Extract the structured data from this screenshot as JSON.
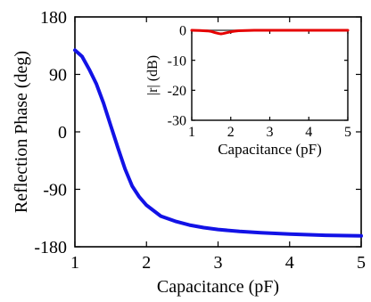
{
  "chart_data": [
    {
      "type": "line",
      "xlabel": "Capacitance (pF)",
      "ylabel": "Reflection Phase (deg)",
      "xlim": [
        1,
        5
      ],
      "ylim": [
        -180,
        180
      ],
      "xticks": [
        "1",
        "2",
        "3",
        "4",
        "5"
      ],
      "yticks": [
        "-180",
        "-90",
        "0",
        "90",
        "180"
      ],
      "grid": false,
      "series": [
        {
          "color": "#1212e6",
          "x": [
            1.0,
            1.1,
            1.2,
            1.3,
            1.4,
            1.5,
            1.6,
            1.7,
            1.8,
            1.9,
            2.0,
            2.2,
            2.4,
            2.6,
            2.8,
            3.0,
            3.3,
            3.6,
            4.0,
            4.5,
            5.0
          ],
          "y": [
            128,
            118,
            98,
            75,
            45,
            10,
            -25,
            -58,
            -85,
            -102,
            -115,
            -132,
            -140,
            -146,
            -150,
            -153,
            -156,
            -158,
            -160,
            -162,
            -163
          ]
        }
      ]
    },
    {
      "type": "line",
      "xlabel": "Capacitance (pF)",
      "ylabel": "|r| (dB)",
      "xlim": [
        1,
        5
      ],
      "ylim": [
        -30,
        0
      ],
      "xticks": [
        "1",
        "2",
        "3",
        "4",
        "5"
      ],
      "yticks": [
        "-30",
        "-20",
        "-10",
        "0"
      ],
      "grid": false,
      "series": [
        {
          "color": "#e60000",
          "x": [
            1.0,
            1.2,
            1.4,
            1.5,
            1.6,
            1.7,
            1.75,
            1.8,
            1.9,
            2.0,
            2.1,
            2.2,
            2.4,
            2.6,
            3.0,
            4.0,
            5.0
          ],
          "y": [
            0,
            -0.05,
            -0.2,
            -0.4,
            -0.8,
            -1.1,
            -1.2,
            -1.1,
            -0.8,
            -0.5,
            -0.3,
            -0.15,
            -0.05,
            0,
            0,
            0,
            0
          ]
        }
      ]
    }
  ]
}
